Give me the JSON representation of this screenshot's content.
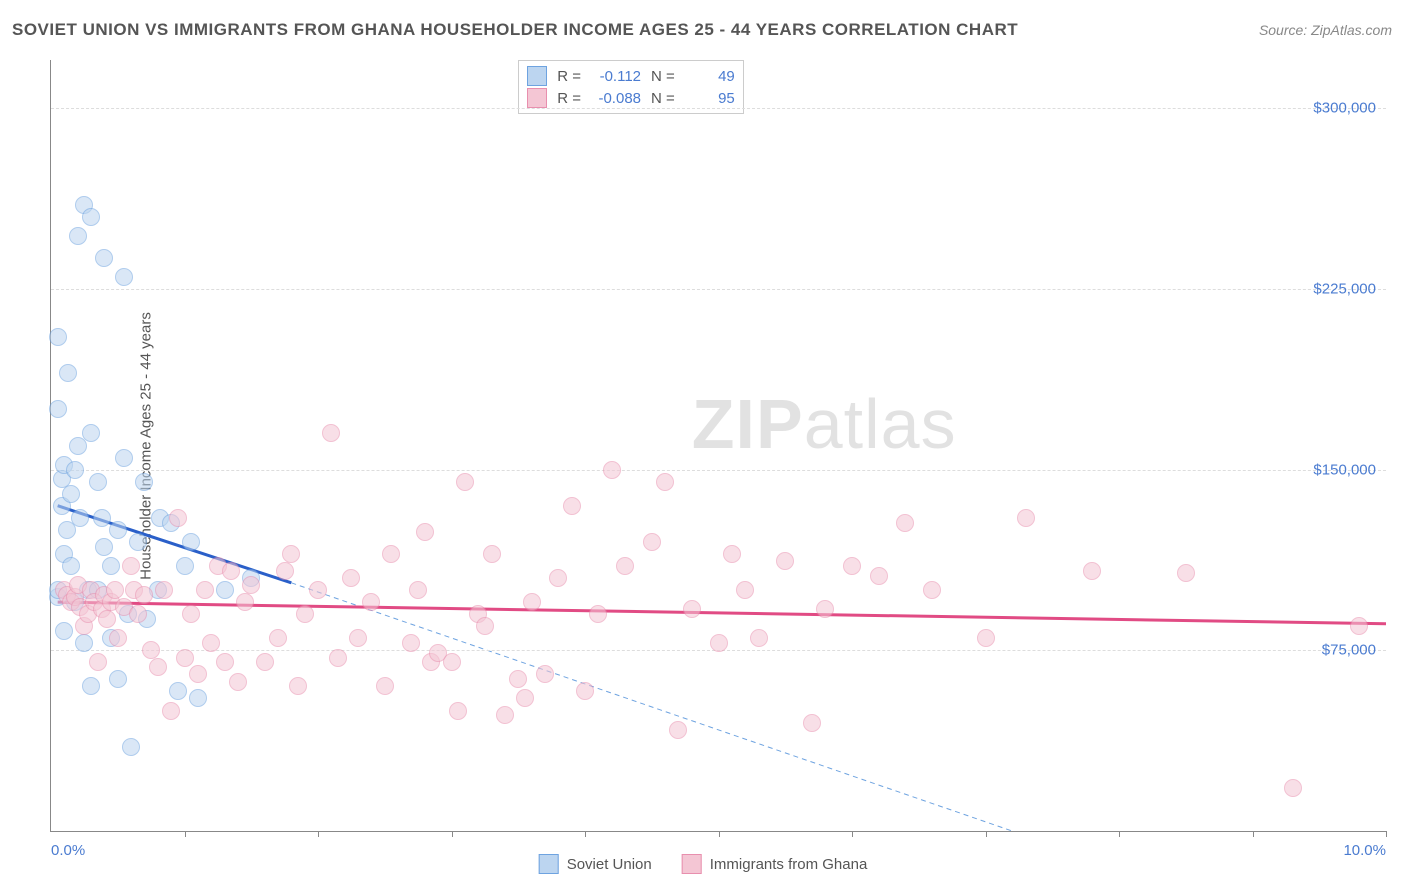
{
  "title": "SOVIET UNION VS IMMIGRANTS FROM GHANA HOUSEHOLDER INCOME AGES 25 - 44 YEARS CORRELATION CHART",
  "source": "Source: ZipAtlas.com",
  "watermark_bold": "ZIP",
  "watermark_light": "atlas",
  "chart": {
    "type": "scatter",
    "ylabel": "Householder Income Ages 25 - 44 years",
    "xlim": [
      0,
      10
    ],
    "ylim": [
      0,
      320000
    ],
    "xtick_labels": [
      "0.0%",
      "10.0%"
    ],
    "xtick_positions": [
      1,
      2,
      3,
      4,
      5,
      6,
      7,
      8,
      9,
      10
    ],
    "ytick_labels": [
      "$75,000",
      "$150,000",
      "$225,000",
      "$300,000"
    ],
    "ytick_values": [
      75000,
      150000,
      225000,
      300000
    ],
    "grid_color": "#dddddd",
    "background_color": "#ffffff",
    "axis_color": "#888888",
    "tick_label_color": "#4a7bd0",
    "label_fontsize": 15,
    "title_fontsize": 17,
    "marker_radius": 9,
    "marker_stroke_width": 1.5
  },
  "series": [
    {
      "name": "Soviet Union",
      "fill": "#bcd5f0",
      "stroke": "#6ea3e0",
      "fill_opacity": 0.55,
      "correlation_R": "-0.112",
      "N": "49",
      "trend": {
        "x1": 0.05,
        "y1": 135000,
        "x2": 1.8,
        "y2": 103000,
        "color": "#2a5fc9",
        "width": 3,
        "dash": "none"
      },
      "trend_ext": {
        "x1": 1.8,
        "y1": 103000,
        "x2": 7.2,
        "y2": 0,
        "color": "#6ea3e0",
        "width": 1,
        "dash": "5,4"
      },
      "points": [
        [
          0.05,
          97000
        ],
        [
          0.05,
          100000
        ],
        [
          0.05,
          175000
        ],
        [
          0.05,
          205000
        ],
        [
          0.08,
          135000
        ],
        [
          0.08,
          146000
        ],
        [
          0.1,
          115000
        ],
        [
          0.1,
          152000
        ],
        [
          0.1,
          83000
        ],
        [
          0.12,
          125000
        ],
        [
          0.13,
          190000
        ],
        [
          0.15,
          110000
        ],
        [
          0.15,
          140000
        ],
        [
          0.18,
          95000
        ],
        [
          0.18,
          150000
        ],
        [
          0.2,
          247000
        ],
        [
          0.2,
          160000
        ],
        [
          0.22,
          130000
        ],
        [
          0.25,
          78000
        ],
        [
          0.25,
          260000
        ],
        [
          0.28,
          100000
        ],
        [
          0.3,
          255000
        ],
        [
          0.3,
          165000
        ],
        [
          0.3,
          60000
        ],
        [
          0.35,
          145000
        ],
        [
          0.35,
          100000
        ],
        [
          0.38,
          130000
        ],
        [
          0.4,
          118000
        ],
        [
          0.4,
          238000
        ],
        [
          0.45,
          80000
        ],
        [
          0.45,
          110000
        ],
        [
          0.5,
          63000
        ],
        [
          0.5,
          125000
        ],
        [
          0.55,
          230000
        ],
        [
          0.55,
          155000
        ],
        [
          0.58,
          90000
        ],
        [
          0.6,
          35000
        ],
        [
          0.65,
          120000
        ],
        [
          0.7,
          145000
        ],
        [
          0.72,
          88000
        ],
        [
          0.8,
          100000
        ],
        [
          0.82,
          130000
        ],
        [
          0.9,
          128000
        ],
        [
          0.95,
          58000
        ],
        [
          1.0,
          110000
        ],
        [
          1.05,
          120000
        ],
        [
          1.1,
          55000
        ],
        [
          1.3,
          100000
        ],
        [
          1.5,
          105000
        ]
      ]
    },
    {
      "name": "Immigrants from Ghana",
      "fill": "#f4c6d4",
      "stroke": "#e88fae",
      "fill_opacity": 0.55,
      "correlation_R": "-0.088",
      "N": "95",
      "trend": {
        "x1": 0.05,
        "y1": 95000,
        "x2": 10.0,
        "y2": 86000,
        "color": "#e14b84",
        "width": 3,
        "dash": "none"
      },
      "points": [
        [
          0.1,
          100000
        ],
        [
          0.12,
          98000
        ],
        [
          0.15,
          95000
        ],
        [
          0.18,
          97000
        ],
        [
          0.2,
          102000
        ],
        [
          0.22,
          93000
        ],
        [
          0.25,
          85000
        ],
        [
          0.28,
          90000
        ],
        [
          0.3,
          100000
        ],
        [
          0.32,
          95000
        ],
        [
          0.35,
          70000
        ],
        [
          0.38,
          92000
        ],
        [
          0.4,
          98000
        ],
        [
          0.42,
          88000
        ],
        [
          0.45,
          95000
        ],
        [
          0.48,
          100000
        ],
        [
          0.5,
          80000
        ],
        [
          0.55,
          93000
        ],
        [
          0.6,
          110000
        ],
        [
          0.62,
          100000
        ],
        [
          0.65,
          90000
        ],
        [
          0.7,
          98000
        ],
        [
          0.75,
          75000
        ],
        [
          0.8,
          68000
        ],
        [
          0.85,
          100000
        ],
        [
          0.9,
          50000
        ],
        [
          0.95,
          130000
        ],
        [
          1.0,
          72000
        ],
        [
          1.05,
          90000
        ],
        [
          1.1,
          65000
        ],
        [
          1.15,
          100000
        ],
        [
          1.2,
          78000
        ],
        [
          1.25,
          110000
        ],
        [
          1.3,
          70000
        ],
        [
          1.35,
          108000
        ],
        [
          1.4,
          62000
        ],
        [
          1.45,
          95000
        ],
        [
          1.5,
          102000
        ],
        [
          1.6,
          70000
        ],
        [
          1.7,
          80000
        ],
        [
          1.75,
          108000
        ],
        [
          1.8,
          115000
        ],
        [
          1.85,
          60000
        ],
        [
          1.9,
          90000
        ],
        [
          2.0,
          100000
        ],
        [
          2.1,
          165000
        ],
        [
          2.15,
          72000
        ],
        [
          2.25,
          105000
        ],
        [
          2.3,
          80000
        ],
        [
          2.4,
          95000
        ],
        [
          2.5,
          60000
        ],
        [
          2.55,
          115000
        ],
        [
          2.7,
          78000
        ],
        [
          2.75,
          100000
        ],
        [
          2.8,
          124000
        ],
        [
          2.85,
          70000
        ],
        [
          2.9,
          74000
        ],
        [
          3.0,
          70000
        ],
        [
          3.05,
          50000
        ],
        [
          3.1,
          145000
        ],
        [
          3.2,
          90000
        ],
        [
          3.25,
          85000
        ],
        [
          3.3,
          115000
        ],
        [
          3.4,
          48000
        ],
        [
          3.5,
          63000
        ],
        [
          3.55,
          55000
        ],
        [
          3.6,
          95000
        ],
        [
          3.7,
          65000
        ],
        [
          3.8,
          105000
        ],
        [
          3.9,
          135000
        ],
        [
          4.0,
          58000
        ],
        [
          4.1,
          90000
        ],
        [
          4.2,
          150000
        ],
        [
          4.3,
          110000
        ],
        [
          4.5,
          120000
        ],
        [
          4.6,
          145000
        ],
        [
          4.7,
          42000
        ],
        [
          4.8,
          92000
        ],
        [
          5.0,
          78000
        ],
        [
          5.1,
          115000
        ],
        [
          5.2,
          100000
        ],
        [
          5.3,
          80000
        ],
        [
          5.5,
          112000
        ],
        [
          5.7,
          45000
        ],
        [
          5.8,
          92000
        ],
        [
          6.0,
          110000
        ],
        [
          6.2,
          106000
        ],
        [
          6.4,
          128000
        ],
        [
          6.6,
          100000
        ],
        [
          7.0,
          80000
        ],
        [
          7.3,
          130000
        ],
        [
          7.8,
          108000
        ],
        [
          8.5,
          107000
        ],
        [
          9.3,
          18000
        ],
        [
          9.8,
          85000
        ]
      ]
    }
  ],
  "stats_legend_labels": {
    "R": "R =",
    "N": "N ="
  },
  "bottom_legend_labels": [
    "Soviet Union",
    "Immigrants from Ghana"
  ]
}
